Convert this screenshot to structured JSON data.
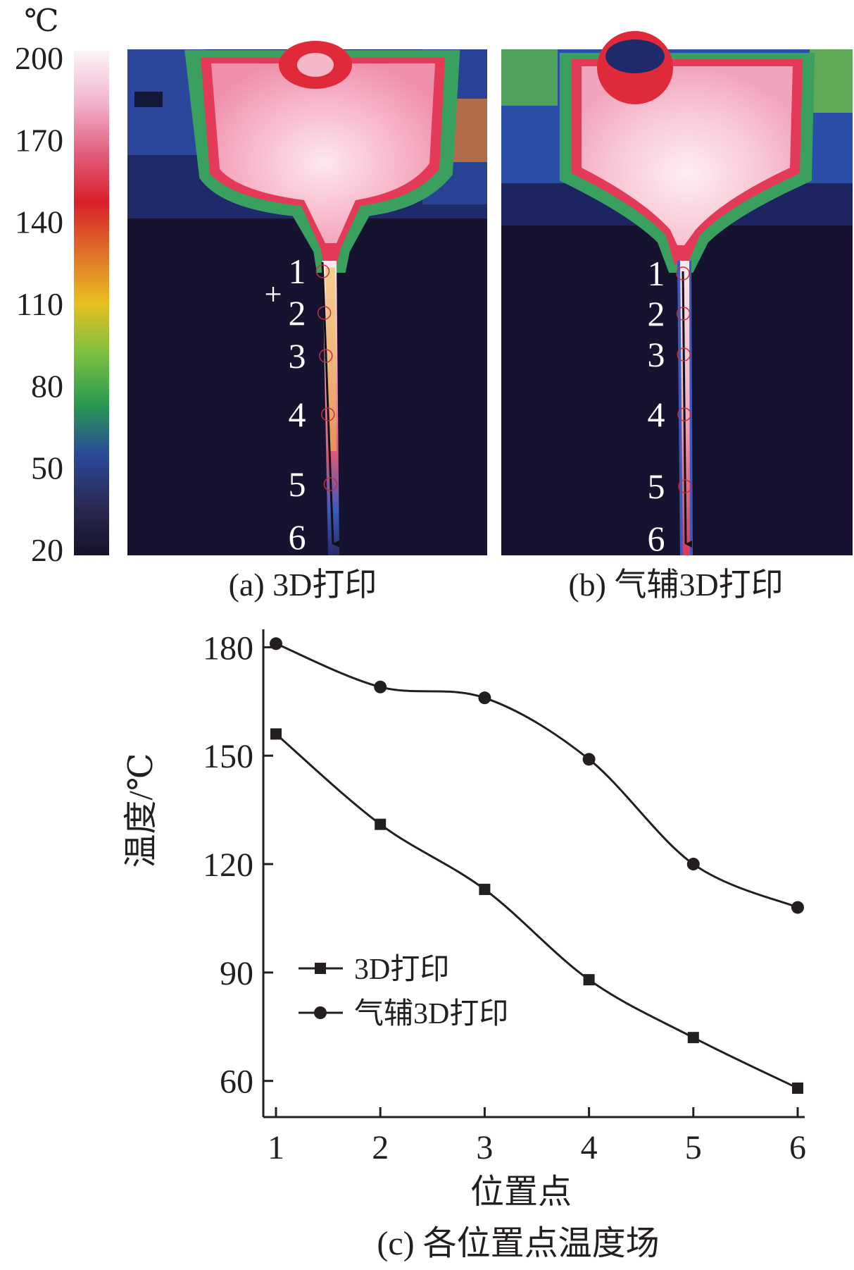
{
  "colorbar": {
    "unit": "℃",
    "ticks": [
      "200",
      "170",
      "140",
      "110",
      "80",
      "50",
      "20"
    ],
    "stops": [
      "#fbf4f8",
      "#f2b6cf",
      "#e2607f",
      "#d8202a",
      "#e0702a",
      "#e8c020",
      "#7cc040",
      "#2a9a50",
      "#2a4a9a",
      "#2a2a55",
      "#151228"
    ]
  },
  "thermal_images": [
    {
      "caption": "(a) 3D打印",
      "point_labels": [
        "1",
        "2",
        "3",
        "4",
        "5",
        "6"
      ],
      "marker": "+"
    },
    {
      "caption": "(b) 气辅3D打印",
      "point_labels": [
        "1",
        "2",
        "3",
        "4",
        "5",
        "6"
      ]
    }
  ],
  "chart_data": {
    "type": "line",
    "caption": "(c) 各位置点温度场",
    "xlabel": "位置点",
    "ylabel": "温度/℃",
    "x": [
      1,
      2,
      3,
      4,
      5,
      6
    ],
    "xticks": [
      "1",
      "2",
      "3",
      "4",
      "5",
      "6"
    ],
    "yticks": [
      60,
      90,
      120,
      150,
      180
    ],
    "ylim": [
      50,
      183
    ],
    "legend_position": "middle-left",
    "grid": false,
    "series": [
      {
        "name": "3D打印",
        "marker": "square",
        "values": [
          156,
          131,
          113,
          88,
          72,
          58
        ]
      },
      {
        "name": "气辅3D打印",
        "marker": "circle",
        "values": [
          181,
          169,
          166,
          149,
          120,
          108
        ]
      }
    ]
  }
}
